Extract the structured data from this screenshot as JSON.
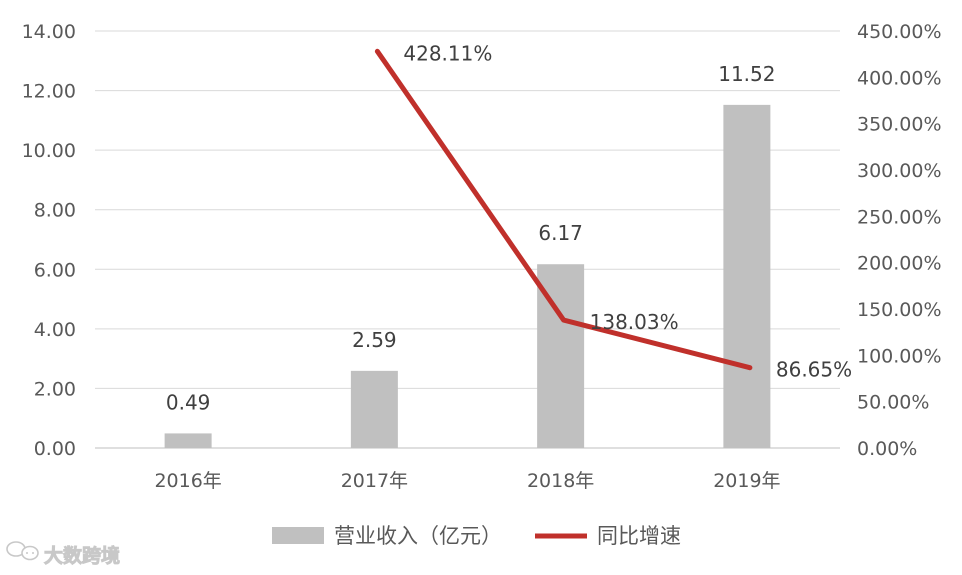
{
  "chart_data": {
    "type": "bar",
    "categories": [
      "2016年",
      "2017年",
      "2018年",
      "2019年"
    ],
    "series": [
      {
        "name": "营业收入（亿元）",
        "type": "bar",
        "axis": "left",
        "values": [
          0.49,
          2.59,
          6.17,
          11.52
        ],
        "labels": [
          "0.49",
          "2.59",
          "6.17",
          "11.52"
        ],
        "color": "#c0c0c0"
      },
      {
        "name": "同比增速",
        "type": "line",
        "axis": "right",
        "values": [
          null,
          428.11,
          138.03,
          86.65
        ],
        "labels": [
          "",
          "428.11%",
          "138.03%",
          "86.65%"
        ],
        "color": "#c0302b"
      }
    ],
    "ylim_left": [
      0,
      14
    ],
    "yticks_left": [
      "0.00",
      "2.00",
      "4.00",
      "6.00",
      "8.00",
      "10.00",
      "12.00",
      "14.00"
    ],
    "ylim_right": [
      0,
      450
    ],
    "yticks_right": [
      "0.00%",
      "50.00%",
      "100.00%",
      "150.00%",
      "200.00%",
      "250.00%",
      "300.00%",
      "350.00%",
      "400.00%",
      "450.00%"
    ],
    "grid": true,
    "legend_position": "bottom",
    "title": "",
    "xlabel": "",
    "ylabel": ""
  },
  "watermark": {
    "icon": "chat-bubble-icon",
    "text": "大数跨境"
  }
}
